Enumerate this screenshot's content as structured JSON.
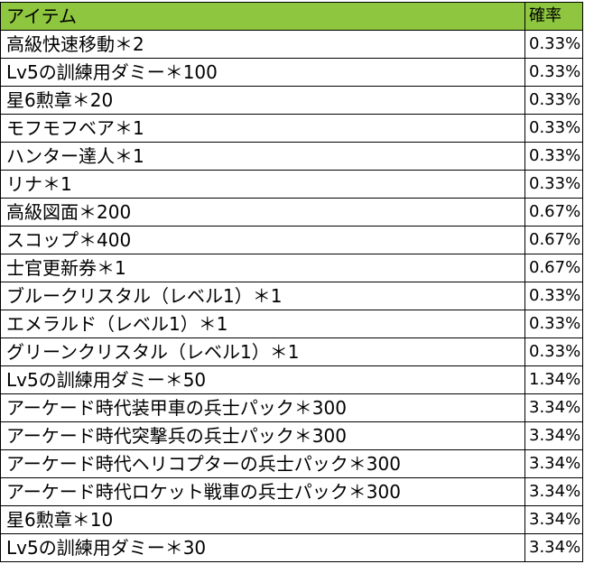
{
  "header": {
    "item_label": "アイテム",
    "rate_label": "確率"
  },
  "colors": {
    "header_bg": "#8ec63f",
    "grid_line": "#000000"
  },
  "rows": [
    {
      "item": "高級快速移動＊2",
      "rate": "0.33%"
    },
    {
      "item": "Lv5の訓練用ダミー＊100",
      "rate": "0.33%"
    },
    {
      "item": "星6勲章＊20",
      "rate": "0.33%"
    },
    {
      "item": "モフモフベア＊1",
      "rate": "0.33%"
    },
    {
      "item": "ハンター達人＊1",
      "rate": "0.33%"
    },
    {
      "item": "リナ＊1",
      "rate": "0.33%"
    },
    {
      "item": "高級図面＊200",
      "rate": "0.67%"
    },
    {
      "item": "スコップ＊400",
      "rate": "0.67%"
    },
    {
      "item": "士官更新券＊1",
      "rate": "0.67%"
    },
    {
      "item": "ブルークリスタル（レベル1）＊1",
      "rate": "0.33%"
    },
    {
      "item": "エメラルド（レベル1）＊1",
      "rate": "0.33%"
    },
    {
      "item": "グリーンクリスタル（レベル1）＊1",
      "rate": "0.33%"
    },
    {
      "item": "Lv5の訓練用ダミー＊50",
      "rate": "1.34%"
    },
    {
      "item": "アーケード時代装甲車の兵士パック＊300",
      "rate": "3.34%"
    },
    {
      "item": "アーケード時代突撃兵の兵士パック＊300",
      "rate": "3.34%"
    },
    {
      "item": "アーケード時代ヘリコプターの兵士パック＊300",
      "rate": "3.34%"
    },
    {
      "item": "アーケード時代ロケット戦車の兵士パック＊300",
      "rate": "3.34%"
    },
    {
      "item": "星6勲章＊10",
      "rate": "3.34%"
    },
    {
      "item": "Lv5の訓練用ダミー＊30",
      "rate": "3.34%"
    }
  ]
}
